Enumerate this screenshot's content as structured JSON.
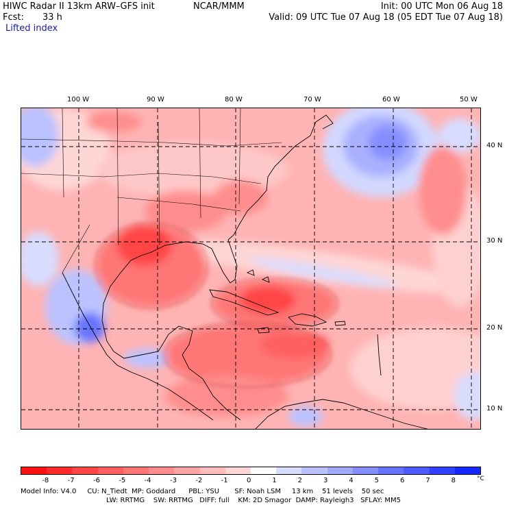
{
  "header": {
    "model_title": "HIWC Radar II 13km ARW–GFS init",
    "institution": "NCAR/MMM",
    "init_time": "Init: 00 UTC Mon 06 Aug 18",
    "fcst_label": "Fcst:",
    "fcst_value": "33 h",
    "valid_time": "Valid: 09 UTC Tue 07 Aug 18 (05 EDT Tue 07 Aug 18)",
    "field_name": "Lifted index"
  },
  "map": {
    "longitude_labels": [
      "100 W",
      "90 W",
      "80 W",
      "70 W",
      "60 W",
      "50 W"
    ],
    "latitude_labels": [
      "40 N",
      "30 N",
      "20 N",
      "10 N"
    ]
  },
  "legend": {
    "unit": "°C",
    "ticks": [
      "-8",
      "-7",
      "-6",
      "-5",
      "-4",
      "-3",
      "-2",
      "-1",
      "0",
      "1",
      "2",
      "3",
      "4",
      "5",
      "6",
      "7",
      "8"
    ],
    "colors": [
      "#ff1010",
      "#ff2a2a",
      "#ff4545",
      "#ff5e5e",
      "#ff7676",
      "#ff8d8d",
      "#ffa5a5",
      "#ffbcbc",
      "#ffd6d6",
      "#ffffff",
      "#d8dcff",
      "#bcc2ff",
      "#a0a8ff",
      "#848eff",
      "#6874ff",
      "#4c5aff",
      "#3040ff",
      "#1428ff"
    ]
  },
  "model_info": {
    "line1": "Model Info: V4.0     CU: N_Tiedt  MP: Goddard      PBL: YSU       SF: Noah LSM     13 km    51 levels    50 sec",
    "line2": "LW: RRTMG    SW: RRTMG   DIFF: full    KM: 2D Smagor  DAMP: Rayleigh3   SFLAY: MM5"
  }
}
